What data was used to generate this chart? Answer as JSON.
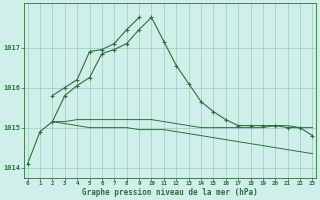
{
  "hours": [
    0,
    1,
    2,
    3,
    4,
    5,
    6,
    7,
    8,
    9,
    10,
    11,
    12,
    13,
    14,
    15,
    16,
    17,
    18,
    19,
    20,
    21,
    22,
    23
  ],
  "line1": [
    1014.1,
    1014.9,
    1015.15,
    1015.8,
    1016.05,
    1016.25,
    1016.85,
    1016.95,
    1017.1,
    1017.45,
    1017.75,
    1017.15,
    1016.55,
    1016.1,
    1015.65,
    1015.4,
    1015.2,
    1015.05,
    1015.05,
    1015.05,
    1015.05,
    1015.0,
    1015.0,
    1014.8
  ],
  "line2": [
    null,
    null,
    1015.8,
    1016.0,
    1016.2,
    1016.9,
    1016.95,
    1017.1,
    1017.45,
    1017.75,
    null,
    null,
    null,
    null,
    null,
    null,
    null,
    null,
    null,
    null,
    null,
    null,
    null,
    null
  ],
  "line3": [
    null,
    null,
    1015.15,
    1015.15,
    1015.2,
    1015.2,
    1015.2,
    1015.2,
    1015.2,
    1015.2,
    1015.2,
    1015.15,
    1015.1,
    1015.05,
    1015.0,
    1015.0,
    1015.0,
    1015.0,
    1015.0,
    1015.0,
    1015.05,
    1015.05,
    1015.0,
    1015.0
  ],
  "line4": [
    null,
    null,
    1015.15,
    1015.1,
    1015.05,
    1015.0,
    1015.0,
    1015.0,
    1015.0,
    1014.95,
    1014.95,
    1014.95,
    1014.9,
    1014.85,
    1014.8,
    1014.75,
    1014.7,
    1014.65,
    1014.6,
    1014.55,
    1014.5,
    1014.45,
    1014.4,
    1014.35
  ],
  "bg_color": "#cff0e8",
  "grid_color": "#99ccbb",
  "line_color": "#2d6e3e",
  "title": "Graphe pression niveau de la mer (hPa)",
  "ylim": [
    1013.75,
    1018.1
  ],
  "yticks": [
    1014,
    1015,
    1016,
    1017
  ],
  "xlim": [
    -0.3,
    23.3
  ]
}
